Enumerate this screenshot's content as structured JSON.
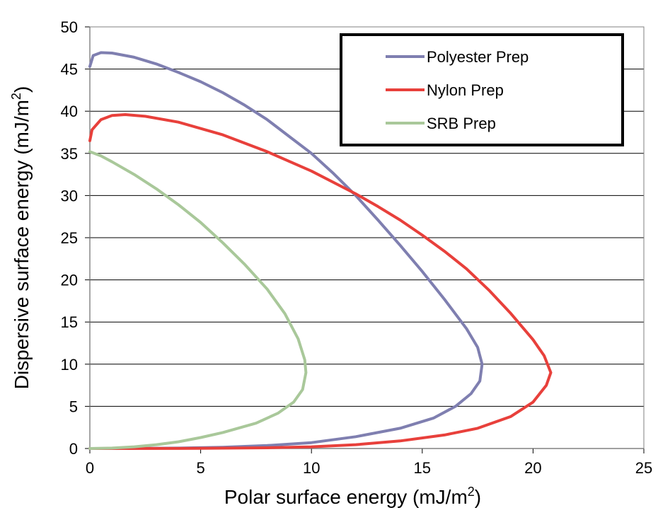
{
  "chart_data": {
    "type": "line",
    "title": "",
    "xlabel": "Polar surface energy (mJ/m",
    "xlabel_sup": "2",
    "xlabel_end": ")",
    "ylabel": "Dispersive surface energy (mJ/m",
    "ylabel_sup": "2",
    "ylabel_end": ")",
    "xlim": [
      0,
      25
    ],
    "ylim": [
      0,
      50
    ],
    "xticks": [
      "0",
      "5",
      "10",
      "15",
      "20",
      "25"
    ],
    "yticks": [
      "0",
      "5",
      "10",
      "15",
      "20",
      "25",
      "30",
      "35",
      "40",
      "45",
      "50"
    ],
    "grid": "horizontal",
    "legend_position": "top-right",
    "series": [
      {
        "name": "Polyester Prep",
        "color": "#7f7fb0",
        "points": [
          [
            0.0,
            45.3
          ],
          [
            0.15,
            46.6
          ],
          [
            0.5,
            46.95
          ],
          [
            1.0,
            46.9
          ],
          [
            2.0,
            46.4
          ],
          [
            3.0,
            45.6
          ],
          [
            4.0,
            44.6
          ],
          [
            5.0,
            43.5
          ],
          [
            6.0,
            42.2
          ],
          [
            7.0,
            40.7
          ],
          [
            8.0,
            39.0
          ],
          [
            9.0,
            37.0
          ],
          [
            10.0,
            35.0
          ],
          [
            11.0,
            32.6
          ],
          [
            12.0,
            30.0
          ],
          [
            13.0,
            27.1
          ],
          [
            14.0,
            24.1
          ],
          [
            15.0,
            21.0
          ],
          [
            16.0,
            17.7
          ],
          [
            17.0,
            14.2
          ],
          [
            17.5,
            12.0
          ],
          [
            17.7,
            10.0
          ],
          [
            17.6,
            8.0
          ],
          [
            17.2,
            6.5
          ],
          [
            16.5,
            5.0
          ],
          [
            15.5,
            3.6
          ],
          [
            14.0,
            2.4
          ],
          [
            12.0,
            1.4
          ],
          [
            10.0,
            0.7
          ],
          [
            8.0,
            0.35
          ],
          [
            6.0,
            0.15
          ],
          [
            4.0,
            0.05
          ],
          [
            2.0,
            0.01
          ],
          [
            0.0,
            0.0
          ]
        ]
      },
      {
        "name": "Nylon Prep",
        "color": "#e8403b",
        "points": [
          [
            0.0,
            36.5
          ],
          [
            0.1,
            37.8
          ],
          [
            0.5,
            39.0
          ],
          [
            1.0,
            39.5
          ],
          [
            1.6,
            39.6
          ],
          [
            2.5,
            39.4
          ],
          [
            4.0,
            38.7
          ],
          [
            6.0,
            37.2
          ],
          [
            8.0,
            35.2
          ],
          [
            10.0,
            32.9
          ],
          [
            12.0,
            30.2
          ],
          [
            13.0,
            28.7
          ],
          [
            14.0,
            27.1
          ],
          [
            15.0,
            25.3
          ],
          [
            16.0,
            23.4
          ],
          [
            17.0,
            21.3
          ],
          [
            18.0,
            18.8
          ],
          [
            19.0,
            16.0
          ],
          [
            20.0,
            12.9
          ],
          [
            20.5,
            11.0
          ],
          [
            20.8,
            9.0
          ],
          [
            20.6,
            7.5
          ],
          [
            20.0,
            5.5
          ],
          [
            19.0,
            3.8
          ],
          [
            17.5,
            2.4
          ],
          [
            16.0,
            1.6
          ],
          [
            14.0,
            0.9
          ],
          [
            12.0,
            0.45
          ],
          [
            10.0,
            0.2
          ],
          [
            8.0,
            0.08
          ],
          [
            5.0,
            0.02
          ],
          [
            0.0,
            0.0
          ]
        ]
      },
      {
        "name": "SRB Prep",
        "color": "#a9c89a",
        "points": [
          [
            0.0,
            35.2
          ],
          [
            0.5,
            34.7
          ],
          [
            1.0,
            34.0
          ],
          [
            2.0,
            32.5
          ],
          [
            3.0,
            30.8
          ],
          [
            4.0,
            28.9
          ],
          [
            5.0,
            26.8
          ],
          [
            6.0,
            24.4
          ],
          [
            7.0,
            21.8
          ],
          [
            8.0,
            18.9
          ],
          [
            8.8,
            16.0
          ],
          [
            9.4,
            13.0
          ],
          [
            9.7,
            10.5
          ],
          [
            9.75,
            9.0
          ],
          [
            9.6,
            7.0
          ],
          [
            9.2,
            5.5
          ],
          [
            8.5,
            4.2
          ],
          [
            7.5,
            3.0
          ],
          [
            6.0,
            1.9
          ],
          [
            5.0,
            1.3
          ],
          [
            4.0,
            0.8
          ],
          [
            3.0,
            0.45
          ],
          [
            2.0,
            0.2
          ],
          [
            1.0,
            0.05
          ],
          [
            0.0,
            0.0
          ]
        ]
      }
    ]
  }
}
